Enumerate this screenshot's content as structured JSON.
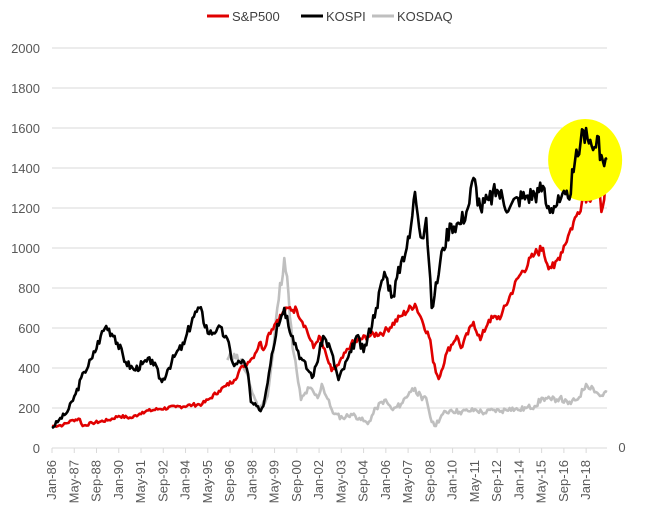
{
  "chart_data": {
    "type": "line",
    "legend_position": "top",
    "grid": true,
    "ylim": [
      0,
      2000
    ],
    "y_ticks": [
      "2000",
      "1800",
      "1600",
      "1400",
      "1200",
      "1000",
      "800",
      "600",
      "400",
      "200",
      "0"
    ],
    "secondary_y_tick": "0",
    "x_ticks": [
      "Jan-86",
      "May-87",
      "Sep-88",
      "Jan-90",
      "May-91",
      "Sep-92",
      "Jan-94",
      "May-95",
      "Sep-96",
      "Jan-98",
      "May-99",
      "Sep-00",
      "Jan-02",
      "May-03",
      "Sep-04",
      "Jan-06",
      "May-07",
      "Sep-08",
      "Jan-10",
      "May-11",
      "Sep-12",
      "Jan-14",
      "May-15",
      "Sep-16",
      "Jan-18"
    ],
    "highlight": {
      "shape": "ellipse",
      "color": "#ffff00",
      "x_center": "2018-01",
      "y_center": 1440
    },
    "series": [
      {
        "name": "S&P500",
        "color": "#e00000",
        "points": [
          [
            "1986-01",
            110
          ],
          [
            "1986-09",
            115
          ],
          [
            "1987-04",
            140
          ],
          [
            "1987-09",
            145
          ],
          [
            "1987-11",
            110
          ],
          [
            "1988-06",
            125
          ],
          [
            "1989-06",
            140
          ],
          [
            "1990-01",
            160
          ],
          [
            "1990-10",
            150
          ],
          [
            "1991-06",
            180
          ],
          [
            "1992-06",
            195
          ],
          [
            "1993-06",
            205
          ],
          [
            "1994-06",
            215
          ],
          [
            "1995-01",
            220
          ],
          [
            "1995-06",
            245
          ],
          [
            "1996-01",
            285
          ],
          [
            "1996-06",
            310
          ],
          [
            "1996-12",
            340
          ],
          [
            "1997-06",
            410
          ],
          [
            "1997-10",
            430
          ],
          [
            "1998-01",
            450
          ],
          [
            "1998-07",
            530
          ],
          [
            "1998-09",
            490
          ],
          [
            "1999-01",
            575
          ],
          [
            "1999-07",
            640
          ],
          [
            "2000-03",
            700
          ],
          [
            "2000-09",
            690
          ],
          [
            "2001-03",
            610
          ],
          [
            "2001-09",
            500
          ],
          [
            "2002-01",
            560
          ],
          [
            "2002-07",
            445
          ],
          [
            "2002-10",
            385
          ],
          [
            "2003-03",
            415
          ],
          [
            "2003-12",
            520
          ],
          [
            "2004-12",
            560
          ],
          [
            "2005-12",
            580
          ],
          [
            "2006-12",
            660
          ],
          [
            "2007-10",
            720
          ],
          [
            "2008-03",
            640
          ],
          [
            "2008-09",
            540
          ],
          [
            "2008-11",
            430
          ],
          [
            "2009-03",
            345
          ],
          [
            "2009-09",
            480
          ],
          [
            "2010-04",
            560
          ],
          [
            "2010-07",
            500
          ],
          [
            "2011-04",
            630
          ],
          [
            "2011-09",
            540
          ],
          [
            "2012-03",
            640
          ],
          [
            "2012-12",
            660
          ],
          [
            "2013-12",
            850
          ],
          [
            "2014-12",
            970
          ],
          [
            "2015-06",
            1000
          ],
          [
            "2015-09",
            920
          ],
          [
            "2016-02",
            900
          ],
          [
            "2016-12",
            1060
          ],
          [
            "2017-06",
            1160
          ],
          [
            "2017-12",
            1270
          ],
          [
            "2018-03",
            1240
          ],
          [
            "2018-09",
            1350
          ],
          [
            "2018-12",
            1180
          ],
          [
            "2019-04",
            1370
          ]
        ]
      },
      {
        "name": "KOSPI",
        "color": "#000000",
        "points": [
          [
            "1986-01",
            100
          ],
          [
            "1986-06",
            140
          ],
          [
            "1986-12",
            180
          ],
          [
            "1987-06",
            270
          ],
          [
            "1987-12",
            380
          ],
          [
            "1988-06",
            450
          ],
          [
            "1988-12",
            560
          ],
          [
            "1989-04",
            610
          ],
          [
            "1989-10",
            560
          ],
          [
            "1990-06",
            430
          ],
          [
            "1990-12",
            390
          ],
          [
            "1991-06",
            420
          ],
          [
            "1992-01",
            440
          ],
          [
            "1992-08",
            330
          ],
          [
            "1992-12",
            390
          ],
          [
            "1993-06",
            470
          ],
          [
            "1993-12",
            520
          ],
          [
            "1994-06",
            650
          ],
          [
            "1994-11",
            700
          ],
          [
            "1995-06",
            570
          ],
          [
            "1995-12",
            600
          ],
          [
            "1996-06",
            560
          ],
          [
            "1996-12",
            410
          ],
          [
            "1997-06",
            440
          ],
          [
            "1997-10",
            370
          ],
          [
            "1997-12",
            230
          ],
          [
            "1998-06",
            190
          ],
          [
            "1998-09",
            210
          ],
          [
            "1999-03",
            470
          ],
          [
            "1999-07",
            620
          ],
          [
            "1999-12",
            700
          ],
          [
            "2000-06",
            560
          ],
          [
            "2000-12",
            450
          ],
          [
            "2001-06",
            380
          ],
          [
            "2001-09",
            360
          ],
          [
            "2002-04",
            560
          ],
          [
            "2002-09",
            500
          ],
          [
            "2003-03",
            340
          ],
          [
            "2003-12",
            480
          ],
          [
            "2004-04",
            560
          ],
          [
            "2004-09",
            480
          ],
          [
            "2005-06",
            700
          ],
          [
            "2005-12",
            880
          ],
          [
            "2006-06",
            760
          ],
          [
            "2006-12",
            930
          ],
          [
            "2007-06",
            1050
          ],
          [
            "2007-10",
            1280
          ],
          [
            "2008-03",
            1050
          ],
          [
            "2008-06",
            1150
          ],
          [
            "2008-10",
            700
          ],
          [
            "2008-12",
            760
          ],
          [
            "2009-06",
            1000
          ],
          [
            "2009-12",
            1120
          ],
          [
            "2010-06",
            1120
          ],
          [
            "2010-12",
            1200
          ],
          [
            "2011-04",
            1350
          ],
          [
            "2011-09",
            1200
          ],
          [
            "2012-03",
            1240
          ],
          [
            "2012-09",
            1290
          ],
          [
            "2013-06",
            1200
          ],
          [
            "2013-12",
            1250
          ],
          [
            "2014-06",
            1260
          ],
          [
            "2015-03",
            1280
          ],
          [
            "2015-06",
            1310
          ],
          [
            "2015-09",
            1200
          ],
          [
            "2016-06",
            1230
          ],
          [
            "2016-12",
            1250
          ],
          [
            "2017-04",
            1380
          ],
          [
            "2017-09",
            1530
          ],
          [
            "2018-01",
            1600
          ],
          [
            "2018-06",
            1490
          ],
          [
            "2018-09",
            1560
          ],
          [
            "2018-11",
            1440
          ],
          [
            "2019-04",
            1450
          ]
        ]
      },
      {
        "name": "KOSDAQ",
        "color": "#bfbfbf",
        "points": [
          [
            "1996-07",
            440
          ],
          [
            "1996-12",
            470
          ],
          [
            "1997-06",
            420
          ],
          [
            "1997-12",
            300
          ],
          [
            "1998-06",
            190
          ],
          [
            "1998-12",
            260
          ],
          [
            "1999-04",
            480
          ],
          [
            "1999-07",
            700
          ],
          [
            "1999-12",
            950
          ],
          [
            "2000-03",
            770
          ],
          [
            "2000-06",
            500
          ],
          [
            "2000-09",
            380
          ],
          [
            "2000-12",
            240
          ],
          [
            "2001-06",
            300
          ],
          [
            "2001-12",
            250
          ],
          [
            "2002-03",
            320
          ],
          [
            "2002-09",
            210
          ],
          [
            "2002-12",
            170
          ],
          [
            "2003-06",
            150
          ],
          [
            "2003-12",
            170
          ],
          [
            "2004-06",
            150
          ],
          [
            "2004-12",
            120
          ],
          [
            "2005-06",
            200
          ],
          [
            "2005-12",
            240
          ],
          [
            "2006-06",
            190
          ],
          [
            "2006-12",
            220
          ],
          [
            "2007-06",
            280
          ],
          [
            "2007-10",
            300
          ],
          [
            "2008-03",
            240
          ],
          [
            "2008-06",
            250
          ],
          [
            "2008-10",
            130
          ],
          [
            "2008-12",
            110
          ],
          [
            "2009-06",
            170
          ],
          [
            "2009-12",
            190
          ],
          [
            "2010-06",
            180
          ],
          [
            "2010-12",
            185
          ],
          [
            "2011-06",
            190
          ],
          [
            "2011-12",
            175
          ],
          [
            "2012-06",
            190
          ],
          [
            "2012-12",
            185
          ],
          [
            "2013-06",
            200
          ],
          [
            "2013-12",
            190
          ],
          [
            "2014-06",
            200
          ],
          [
            "2014-12",
            210
          ],
          [
            "2015-06",
            250
          ],
          [
            "2015-12",
            240
          ],
          [
            "2016-06",
            250
          ],
          [
            "2016-12",
            220
          ],
          [
            "2017-06",
            240
          ],
          [
            "2017-11",
            290
          ],
          [
            "2018-01",
            320
          ],
          [
            "2018-06",
            300
          ],
          [
            "2018-11",
            260
          ],
          [
            "2019-04",
            280
          ]
        ]
      }
    ]
  }
}
